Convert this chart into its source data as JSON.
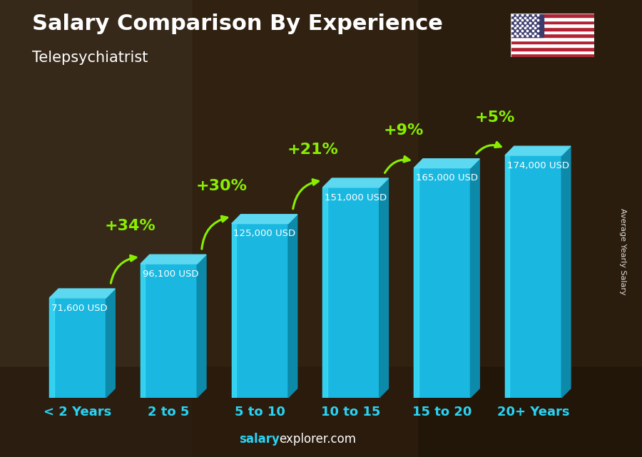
{
  "title_line1": "Salary Comparison By Experience",
  "title_line2": "Telepsychiatrist",
  "categories": [
    "< 2 Years",
    "2 to 5",
    "5 to 10",
    "10 to 15",
    "15 to 20",
    "20+ Years"
  ],
  "values": [
    71600,
    96100,
    125000,
    151000,
    165000,
    174000
  ],
  "labels": [
    "71,600 USD",
    "96,100 USD",
    "125,000 USD",
    "151,000 USD",
    "165,000 USD",
    "174,000 USD"
  ],
  "pct_labels": [
    "+34%",
    "+30%",
    "+21%",
    "+9%",
    "+5%"
  ],
  "bar_face_color": "#1ab8e0",
  "bar_top_color": "#5cd8f0",
  "bar_side_color": "#0d8aaa",
  "text_color_white": "#ffffff",
  "text_color_cyan": "#29d4f5",
  "text_color_green": "#88ee00",
  "footer_salary_color": "#29d4f5",
  "footer_explorer_color": "#ffffff",
  "ylabel_text": "Average Yearly Salary",
  "bg_dark": "#1a1208",
  "bar_width": 0.62,
  "ylim": [
    0,
    220000
  ],
  "label_fontsize": 9.5,
  "pct_fontsize": 16,
  "cat_fontsize": 13
}
